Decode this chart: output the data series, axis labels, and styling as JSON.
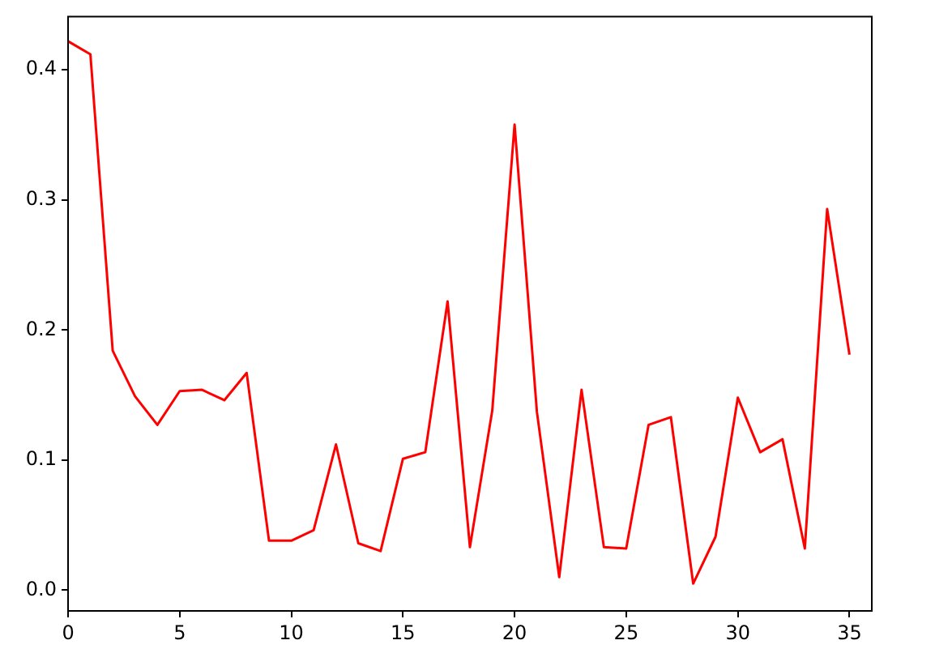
{
  "chart_data": {
    "type": "line",
    "x": [
      0,
      1,
      2,
      3,
      4,
      5,
      6,
      7,
      8,
      9,
      10,
      11,
      12,
      13,
      14,
      15,
      16,
      17,
      18,
      19,
      20,
      21,
      22,
      23,
      24,
      25,
      26,
      27,
      28,
      29,
      30,
      31,
      32,
      33,
      34,
      35
    ],
    "series": [
      {
        "color": "#ff0000",
        "values": [
          0.422,
          0.412,
          0.184,
          0.149,
          0.127,
          0.153,
          0.154,
          0.146,
          0.167,
          0.038,
          0.038,
          0.046,
          0.112,
          0.036,
          0.03,
          0.101,
          0.106,
          0.222,
          0.033,
          0.138,
          0.358,
          0.137,
          0.01,
          0.154,
          0.033,
          0.032,
          0.127,
          0.133,
          0.005,
          0.041,
          0.148,
          0.106,
          0.116,
          0.032,
          0.293,
          0.181
        ]
      }
    ],
    "xlim": [
      0,
      36
    ],
    "xticks": [
      0,
      5,
      10,
      15,
      20,
      25,
      30,
      35
    ],
    "ylim": [
      -0.016,
      0.441
    ],
    "yticks": [
      {
        "value": 0,
        "label": "0.0"
      },
      {
        "value": 0.1,
        "label": "0.1"
      },
      {
        "value": 0.2,
        "label": "0.2"
      },
      {
        "value": 0.3,
        "label": "0.3"
      },
      {
        "value": 0.4,
        "label": "0.4"
      }
    ],
    "grid": false,
    "legend": false,
    "marker": "none",
    "line_style": "solid"
  }
}
